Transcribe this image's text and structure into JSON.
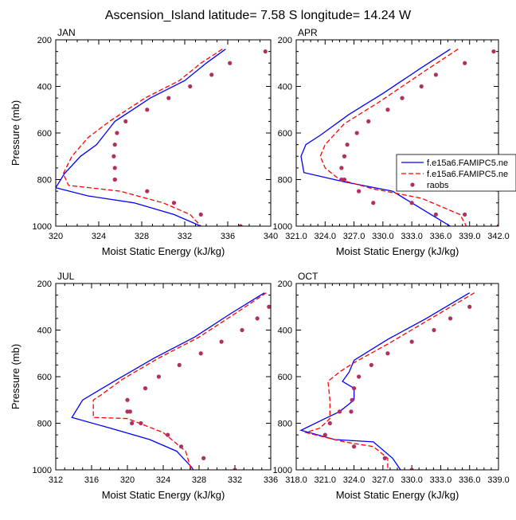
{
  "title": "Ascension_Island  latitude= 7.58 S longitude= 14.24 W",
  "colors": {
    "model1": "#0000ff",
    "model2": "#ff0000",
    "raobs": "#b03060"
  },
  "legend": {
    "placement": "right of APR panel",
    "entries": [
      "f.e15a6.FAMIPC5.ne",
      "f.e15a6.FAMIPC5.ne",
      "raobs"
    ]
  },
  "chart_data": [
    {
      "type": "line",
      "panel": "JAN",
      "title": "JAN",
      "xlabel": "Moist Static Energy (kJ/kg)",
      "ylabel": "Pressure (mb)",
      "xlim": [
        320,
        340
      ],
      "ylim": [
        200,
        1000
      ],
      "y_inverted": true,
      "xticks": [
        320,
        324,
        328,
        332,
        336,
        340
      ],
      "xtick_labels": [
        "320",
        "324",
        "328",
        "332",
        "336",
        "340"
      ],
      "yticks": [
        200,
        400,
        600,
        800,
        1000
      ],
      "ytick_labels": [
        "200",
        "400",
        "600",
        "800",
        "1000"
      ],
      "series": [
        {
          "kind": "line-solid",
          "x": [
            335.8,
            334.0,
            332.0,
            328.8,
            325.5,
            323.8,
            322.3,
            320.8,
            320.0,
            323.0,
            327.3,
            331.0,
            333.5,
            334.0
          ],
          "y": [
            240,
            300,
            375,
            450,
            550,
            650,
            700,
            775,
            835,
            870,
            900,
            950,
            1000,
            1010
          ]
        },
        {
          "kind": "line-dashed",
          "x": [
            335.5,
            333.5,
            331.5,
            328.3,
            325.0,
            323.0,
            321.5,
            320.7,
            321.2,
            326.0,
            330.0,
            332.5,
            333.5
          ],
          "y": [
            240,
            300,
            375,
            450,
            550,
            620,
            700,
            775,
            825,
            850,
            900,
            950,
            1000
          ]
        },
        {
          "kind": "scatter",
          "x": [
            339.5,
            336.2,
            334.5,
            332.5,
            330.5,
            328.5,
            326.5,
            325.7,
            325.5,
            325.4,
            325.5,
            325.5,
            325.5,
            328.5,
            331.0,
            333.5,
            337.2
          ],
          "y": [
            250,
            300,
            350,
            400,
            450,
            500,
            550,
            600,
            650,
            700,
            750,
            800,
            800,
            850,
            900,
            950,
            1000
          ]
        }
      ]
    },
    {
      "type": "line",
      "panel": "APR",
      "title": "APR",
      "xlabel": "Moist Static Energy (kJ/kg)",
      "ylabel": "",
      "xlim": [
        321,
        342
      ],
      "ylim": [
        200,
        1000
      ],
      "y_inverted": true,
      "xticks": [
        321,
        324,
        327,
        330,
        333,
        336,
        339,
        342
      ],
      "xtick_labels": [
        "321.0",
        "324.0",
        "327.0",
        "330.0",
        "333.0",
        "336.0",
        "339.0",
        "342.0"
      ],
      "yticks": [
        200,
        400,
        600,
        800,
        1000
      ],
      "ytick_labels": [
        "200",
        "400",
        "600",
        "800",
        "1000"
      ],
      "series": [
        {
          "kind": "line-solid",
          "x": [
            337.0,
            334.0,
            330.0,
            326.5,
            323.5,
            322.0,
            321.5,
            321.8,
            326.0,
            331.0,
            335.0,
            337.0
          ],
          "y": [
            240,
            320,
            430,
            520,
            610,
            650,
            700,
            770,
            810,
            850,
            950,
            1000
          ]
        },
        {
          "kind": "line-dashed",
          "x": [
            337.8,
            334.5,
            329.5,
            326.0,
            324.0,
            323.5,
            324.0,
            325.5,
            329.0,
            334.0,
            338.0,
            338.8
          ],
          "y": [
            240,
            330,
            470,
            560,
            650,
            700,
            750,
            800,
            840,
            880,
            950,
            1010
          ]
        },
        {
          "kind": "scatter",
          "x": [
            341.5,
            338.5,
            335.5,
            334.0,
            332.0,
            330.5,
            328.5,
            327.3,
            326.3,
            326.0,
            325.7,
            325.7,
            326.0,
            327.5,
            329.0,
            333.0,
            335.5,
            338.5,
            342.0
          ],
          "y": [
            250,
            300,
            350,
            400,
            450,
            500,
            550,
            600,
            650,
            700,
            750,
            800,
            800,
            850,
            900,
            900,
            950,
            950,
            1000
          ]
        }
      ]
    },
    {
      "type": "line",
      "panel": "JUL",
      "title": "JUL",
      "xlabel": "Moist Static Energy (kJ/kg)",
      "ylabel": "Pressure (mb)",
      "xlim": [
        312,
        336
      ],
      "ylim": [
        200,
        1000
      ],
      "y_inverted": true,
      "xticks": [
        312,
        316,
        320,
        324,
        328,
        332,
        336
      ],
      "xtick_labels": [
        "312",
        "316",
        "320",
        "324",
        "328",
        "332",
        "336"
      ],
      "yticks": [
        200,
        400,
        600,
        800,
        1000
      ],
      "ytick_labels": [
        "200",
        "400",
        "600",
        "800",
        "1000"
      ],
      "series": [
        {
          "kind": "line-solid",
          "x": [
            335.3,
            331.5,
            327.5,
            323.0,
            318.5,
            315.0,
            313.8,
            318.0,
            322.5,
            325.5,
            327.2,
            327.5
          ],
          "y": [
            240,
            330,
            430,
            520,
            620,
            700,
            775,
            820,
            870,
            920,
            990,
            1010
          ]
        },
        {
          "kind": "line-dashed",
          "x": [
            335.5,
            332.0,
            328.0,
            323.5,
            319.5,
            317.0,
            316.2,
            316.2,
            320.0,
            324.0,
            326.5,
            327.2
          ],
          "y": [
            240,
            330,
            430,
            520,
            610,
            680,
            700,
            775,
            780,
            840,
            920,
            1010
          ]
        },
        {
          "kind": "scatter",
          "x": [
            335.8,
            334.5,
            332.8,
            330.5,
            328.2,
            325.8,
            323.5,
            322.0,
            320.0,
            320.3,
            320.0,
            320.5,
            321.5,
            324.5,
            326.0,
            328.5,
            332.0
          ],
          "y": [
            300,
            350,
            400,
            450,
            500,
            550,
            600,
            650,
            700,
            750,
            750,
            800,
            800,
            850,
            900,
            950,
            1000
          ]
        }
      ]
    },
    {
      "type": "line",
      "panel": "OCT",
      "title": "OCT",
      "xlabel": "Moist Static Energy (kJ/kg)",
      "ylabel": "",
      "xlim": [
        318,
        339
      ],
      "ylim": [
        200,
        1000
      ],
      "y_inverted": true,
      "xticks": [
        318,
        321,
        324,
        327,
        330,
        333,
        336,
        339
      ],
      "xtick_labels": [
        "318.0",
        "321.0",
        "324.0",
        "327.0",
        "330.0",
        "333.0",
        "336.0",
        "339.0"
      ],
      "yticks": [
        200,
        400,
        600,
        800,
        1000
      ],
      "ytick_labels": [
        "200",
        "400",
        "600",
        "800",
        "1000"
      ],
      "series": [
        {
          "kind": "line-solid",
          "x": [
            336.0,
            331.5,
            327.5,
            324.0,
            323.5,
            322.8,
            324.0,
            324.0,
            322.5,
            321.0,
            318.5,
            322.0,
            326.0,
            328.0,
            329.0
          ],
          "y": [
            240,
            350,
            440,
            530,
            580,
            620,
            650,
            700,
            750,
            780,
            830,
            870,
            880,
            950,
            1010
          ]
        },
        {
          "kind": "line-dashed",
          "x": [
            336.5,
            332.0,
            327.5,
            324.0,
            322.5,
            321.3,
            321.5,
            321.5,
            320.5,
            319.0,
            323.0,
            326.0,
            327.5,
            327.5
          ],
          "y": [
            240,
            350,
            460,
            540,
            580,
            620,
            700,
            780,
            820,
            840,
            880,
            900,
            950,
            1010
          ]
        },
        {
          "kind": "scatter",
          "x": [
            336.0,
            334.0,
            332.3,
            330.0,
            327.5,
            325.8,
            324.5,
            324.0,
            323.8,
            323.7,
            322.5,
            321.5,
            321.0,
            324.0,
            327.2,
            330.0
          ],
          "y": [
            300,
            350,
            400,
            450,
            500,
            550,
            600,
            650,
            700,
            750,
            750,
            800,
            850,
            900,
            950,
            1000
          ]
        }
      ]
    }
  ]
}
